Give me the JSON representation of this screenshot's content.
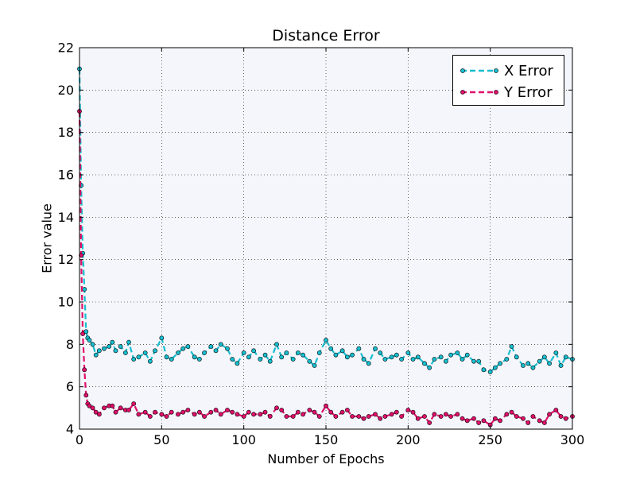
{
  "chart_data": {
    "type": "line",
    "title": "Distance Error",
    "xlabel": "Number of Epochs",
    "ylabel": "Error value",
    "xlim": [
      0,
      300
    ],
    "ylim": [
      4,
      22
    ],
    "xticks": [
      0,
      50,
      100,
      150,
      200,
      250,
      300
    ],
    "yticks": [
      4,
      6,
      8,
      10,
      12,
      14,
      16,
      18,
      20,
      22
    ],
    "grid": true,
    "legend_position": "top-right",
    "background_color": "#f5f6fb",
    "series": [
      {
        "name": "X Error",
        "color": "#17becf",
        "line_style": "dashed",
        "marker": "circle",
        "x": [
          0,
          1,
          2,
          3,
          4,
          5,
          6,
          8,
          10,
          12,
          15,
          18,
          20,
          22,
          25,
          28,
          30,
          33,
          36,
          40,
          43,
          46,
          50,
          53,
          56,
          60,
          63,
          66,
          70,
          73,
          76,
          80,
          83,
          86,
          90,
          93,
          96,
          100,
          103,
          106,
          110,
          113,
          116,
          120,
          123,
          126,
          130,
          133,
          136,
          140,
          143,
          146,
          150,
          153,
          156,
          160,
          163,
          166,
          170,
          173,
          176,
          180,
          183,
          186,
          190,
          193,
          196,
          200,
          203,
          206,
          210,
          213,
          216,
          220,
          223,
          226,
          230,
          233,
          236,
          240,
          243,
          246,
          250,
          253,
          256,
          260,
          263,
          266,
          270,
          273,
          276,
          280,
          283,
          286,
          290,
          293,
          296,
          300
        ],
        "y": [
          21.0,
          15.5,
          12.3,
          10.6,
          8.6,
          8.3,
          8.2,
          8.0,
          7.5,
          7.7,
          7.8,
          7.9,
          8.1,
          7.7,
          7.9,
          7.6,
          8.1,
          7.3,
          7.4,
          7.6,
          7.2,
          7.7,
          8.3,
          7.4,
          7.3,
          7.6,
          7.8,
          7.9,
          7.4,
          7.3,
          7.6,
          7.9,
          7.7,
          8.0,
          7.8,
          7.3,
          7.1,
          7.6,
          7.4,
          7.7,
          7.3,
          7.5,
          7.2,
          8.0,
          7.4,
          7.6,
          7.3,
          7.6,
          7.5,
          7.2,
          7.0,
          7.6,
          8.2,
          7.8,
          7.5,
          7.7,
          7.4,
          7.5,
          7.8,
          7.3,
          7.1,
          7.8,
          7.6,
          7.3,
          7.4,
          7.5,
          7.3,
          7.6,
          7.3,
          7.4,
          7.1,
          6.9,
          7.3,
          7.4,
          7.2,
          7.5,
          7.6,
          7.3,
          7.5,
          7.2,
          7.2,
          6.8,
          6.7,
          6.9,
          7.1,
          7.3,
          7.9,
          7.4,
          7.0,
          7.1,
          6.9,
          7.2,
          7.4,
          7.1,
          7.6,
          7.0,
          7.4,
          7.3
        ]
      },
      {
        "name": "Y Error",
        "color": "#e0106b",
        "line_style": "dashed",
        "marker": "circle",
        "x": [
          0,
          1,
          2,
          3,
          4,
          5,
          6,
          8,
          10,
          12,
          15,
          18,
          20,
          22,
          25,
          28,
          30,
          33,
          36,
          40,
          43,
          46,
          50,
          53,
          56,
          60,
          63,
          66,
          70,
          73,
          76,
          80,
          83,
          86,
          90,
          93,
          96,
          100,
          103,
          106,
          110,
          113,
          116,
          120,
          123,
          126,
          130,
          133,
          136,
          140,
          143,
          146,
          150,
          153,
          156,
          160,
          163,
          166,
          170,
          173,
          176,
          180,
          183,
          186,
          190,
          193,
          196,
          200,
          203,
          206,
          210,
          213,
          216,
          220,
          223,
          226,
          230,
          233,
          236,
          240,
          243,
          246,
          250,
          253,
          256,
          260,
          263,
          266,
          270,
          273,
          276,
          280,
          283,
          286,
          290,
          293,
          296,
          300
        ],
        "y": [
          19.0,
          12.2,
          8.5,
          6.8,
          5.6,
          5.2,
          5.1,
          5.0,
          4.8,
          4.7,
          5.0,
          5.1,
          5.1,
          4.8,
          5.0,
          4.9,
          4.9,
          5.2,
          4.7,
          4.8,
          4.6,
          4.8,
          4.7,
          4.6,
          4.8,
          4.7,
          4.8,
          4.9,
          4.7,
          4.8,
          4.6,
          4.8,
          4.9,
          4.7,
          4.9,
          4.8,
          4.7,
          4.6,
          4.8,
          4.7,
          4.7,
          4.8,
          4.6,
          5.0,
          4.9,
          4.6,
          4.6,
          4.8,
          4.7,
          4.9,
          4.8,
          4.6,
          5.1,
          4.8,
          4.6,
          4.8,
          4.9,
          4.6,
          4.6,
          4.5,
          4.6,
          4.7,
          4.5,
          4.6,
          4.7,
          4.8,
          4.6,
          4.9,
          4.8,
          4.5,
          4.6,
          4.3,
          4.7,
          4.6,
          4.7,
          4.6,
          4.7,
          4.5,
          4.4,
          4.5,
          4.3,
          4.4,
          4.2,
          4.5,
          4.4,
          4.7,
          4.8,
          4.6,
          4.5,
          4.3,
          4.6,
          4.4,
          4.3,
          4.7,
          4.9,
          4.6,
          4.5,
          4.6
        ]
      }
    ]
  }
}
